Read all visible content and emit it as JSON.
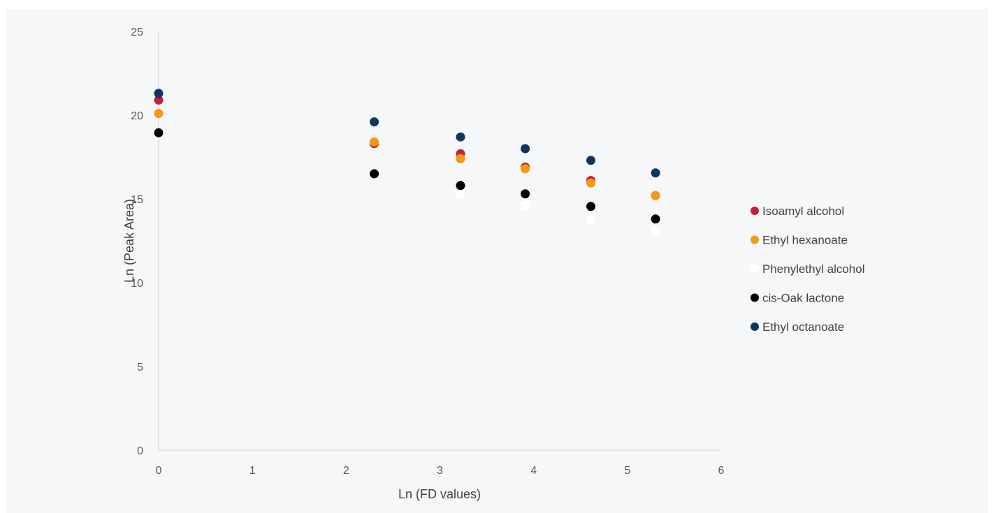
{
  "chart_data": {
    "type": "scatter",
    "title": "",
    "xlabel": "Ln (FD values)",
    "ylabel": "Ln (Peak Area)",
    "xlim": [
      0,
      6
    ],
    "ylim": [
      0,
      25
    ],
    "xticks": [
      "0",
      "1",
      "2",
      "3",
      "4",
      "5",
      "6"
    ],
    "yticks": [
      "0",
      "5",
      "10",
      "15",
      "20",
      "25"
    ],
    "grid": false,
    "legend_position": "right",
    "series": [
      {
        "name": "Isoamyl alcohol",
        "color": "#c0223b",
        "points": [
          [
            0,
            20.9
          ],
          [
            2.3,
            18.3
          ],
          [
            3.22,
            17.7
          ],
          [
            3.91,
            16.9
          ],
          [
            4.61,
            16.1
          ],
          [
            5.3,
            15.2
          ]
        ]
      },
      {
        "name": "Ethyl hexanoate",
        "color": "#f39a12",
        "points": [
          [
            0,
            20.1
          ],
          [
            2.3,
            18.4
          ],
          [
            3.22,
            17.4
          ],
          [
            3.91,
            16.8
          ],
          [
            4.61,
            15.95
          ],
          [
            5.3,
            15.2
          ]
        ]
      },
      {
        "name": "Phenylethyl alcohol",
        "color": "#ffffff",
        "points": [
          [
            0,
            18.9
          ],
          [
            2.3,
            16.5
          ],
          [
            3.22,
            15.3
          ],
          [
            3.91,
            14.6
          ],
          [
            4.61,
            13.7
          ],
          [
            5.3,
            13.1
          ]
        ]
      },
      {
        "name": "cis-Oak lactone",
        "color": "#000000",
        "points": [
          [
            0,
            18.95
          ],
          [
            2.3,
            16.5
          ],
          [
            3.22,
            15.8
          ],
          [
            3.91,
            15.3
          ],
          [
            4.61,
            14.55
          ],
          [
            5.3,
            13.8
          ]
        ]
      },
      {
        "name": "Ethyl octanoate",
        "color": "#0c365e",
        "points": [
          [
            0,
            21.3
          ],
          [
            2.3,
            19.6
          ],
          [
            3.22,
            18.7
          ],
          [
            3.91,
            18.0
          ],
          [
            4.61,
            17.3
          ],
          [
            5.3,
            16.55
          ]
        ]
      }
    ]
  }
}
